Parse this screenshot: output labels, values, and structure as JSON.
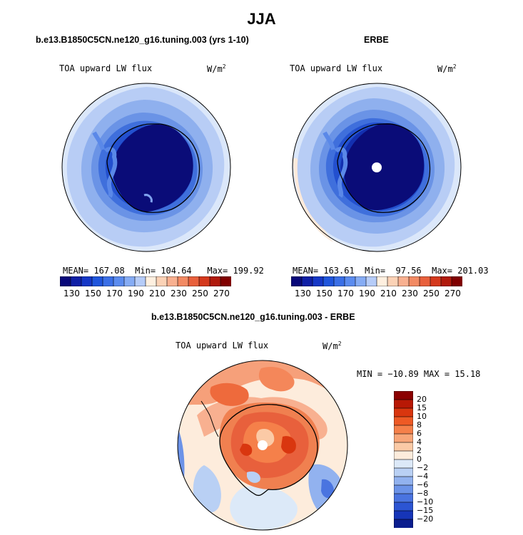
{
  "page": {
    "title": "JJA"
  },
  "panels": [
    {
      "title": "b.e13.B1850C5CN.ne120_g16.tuning.003 (yrs 1-10)",
      "variable": "TOA upward LW flux",
      "units": "W/m",
      "units_exp": "2",
      "stats": {
        "mean_label": "MEAN=",
        "mean": "167.08",
        "min_label": "Min=",
        "min": "104.64",
        "max_label": "Max=",
        "max": "199.92"
      }
    },
    {
      "title": "ERBE",
      "variable": "TOA upward LW flux",
      "units": "W/m",
      "units_exp": "2",
      "stats": {
        "mean_label": "MEAN=",
        "mean": "163.61",
        "min_label": "Min=",
        "min": "97.56",
        "max_label": "Max=",
        "max": "201.03"
      }
    }
  ],
  "diff_panel": {
    "title": "b.e13.B1850C5CN.ne120_g16.tuning.003 - ERBE",
    "variable": "TOA upward LW flux",
    "units": "W/m",
    "units_exp": "2",
    "minmax": "MIN = −10.89 MAX =  15.18"
  },
  "colorbar_abs": {
    "labels": [
      "130",
      "150",
      "170",
      "190",
      "210",
      "230",
      "250",
      "270"
    ],
    "colors": [
      "#08087a",
      "#0f1fa6",
      "#1537c6",
      "#1f55dc",
      "#3a6fe6",
      "#5b8cef",
      "#86acf4",
      "#b6ccf8",
      "#fff0e0",
      "#fbd2b6",
      "#f8b090",
      "#f28a63",
      "#e8603c",
      "#d4381c",
      "#b01a0c",
      "#800000"
    ]
  },
  "colorbar_diff": {
    "labels": [
      "20",
      "15",
      "10",
      "8",
      "6",
      "4",
      "2",
      "0",
      "−2",
      "−4",
      "−6",
      "−8",
      "−10",
      "−15",
      "−20"
    ],
    "colors": [
      "#8b0000",
      "#b81805",
      "#d9360f",
      "#ee5a25",
      "#f5804a",
      "#f8a679",
      "#fbcaa6",
      "#fdecdc",
      "#dce9f8",
      "#b9d0f4",
      "#92b2ef",
      "#6c93e8",
      "#4a74e0",
      "#2c55d3",
      "#1635b8",
      "#0b1d8e"
    ]
  },
  "chart_data": [
    {
      "type": "heatmap",
      "title": "b.e13.B1850C5CN.ne120_g16.tuning.003 (yrs 1-10)",
      "variable": "TOA upward LW flux",
      "units": "W/m2",
      "stats": {
        "mean": 167.08,
        "min": 104.64,
        "max": 199.92
      },
      "colorbar_levels": [
        130,
        150,
        170,
        190,
        210,
        230,
        250,
        270
      ]
    },
    {
      "type": "heatmap",
      "title": "ERBE",
      "variable": "TOA upward LW flux",
      "units": "W/m2",
      "stats": {
        "mean": 163.61,
        "min": 97.56,
        "max": 201.03
      },
      "colorbar_levels": [
        130,
        150,
        170,
        190,
        210,
        230,
        250,
        270
      ]
    },
    {
      "type": "heatmap",
      "title": "b.e13.B1850C5CN.ne120_g16.tuning.003 - ERBE",
      "variable": "TOA upward LW flux",
      "units": "W/m2",
      "stats": {
        "min": -10.89,
        "max": 15.18
      },
      "colorbar_levels": [
        20,
        15,
        10,
        8,
        6,
        4,
        2,
        0,
        -2,
        -4,
        -6,
        -8,
        -10,
        -15,
        -20
      ]
    }
  ]
}
